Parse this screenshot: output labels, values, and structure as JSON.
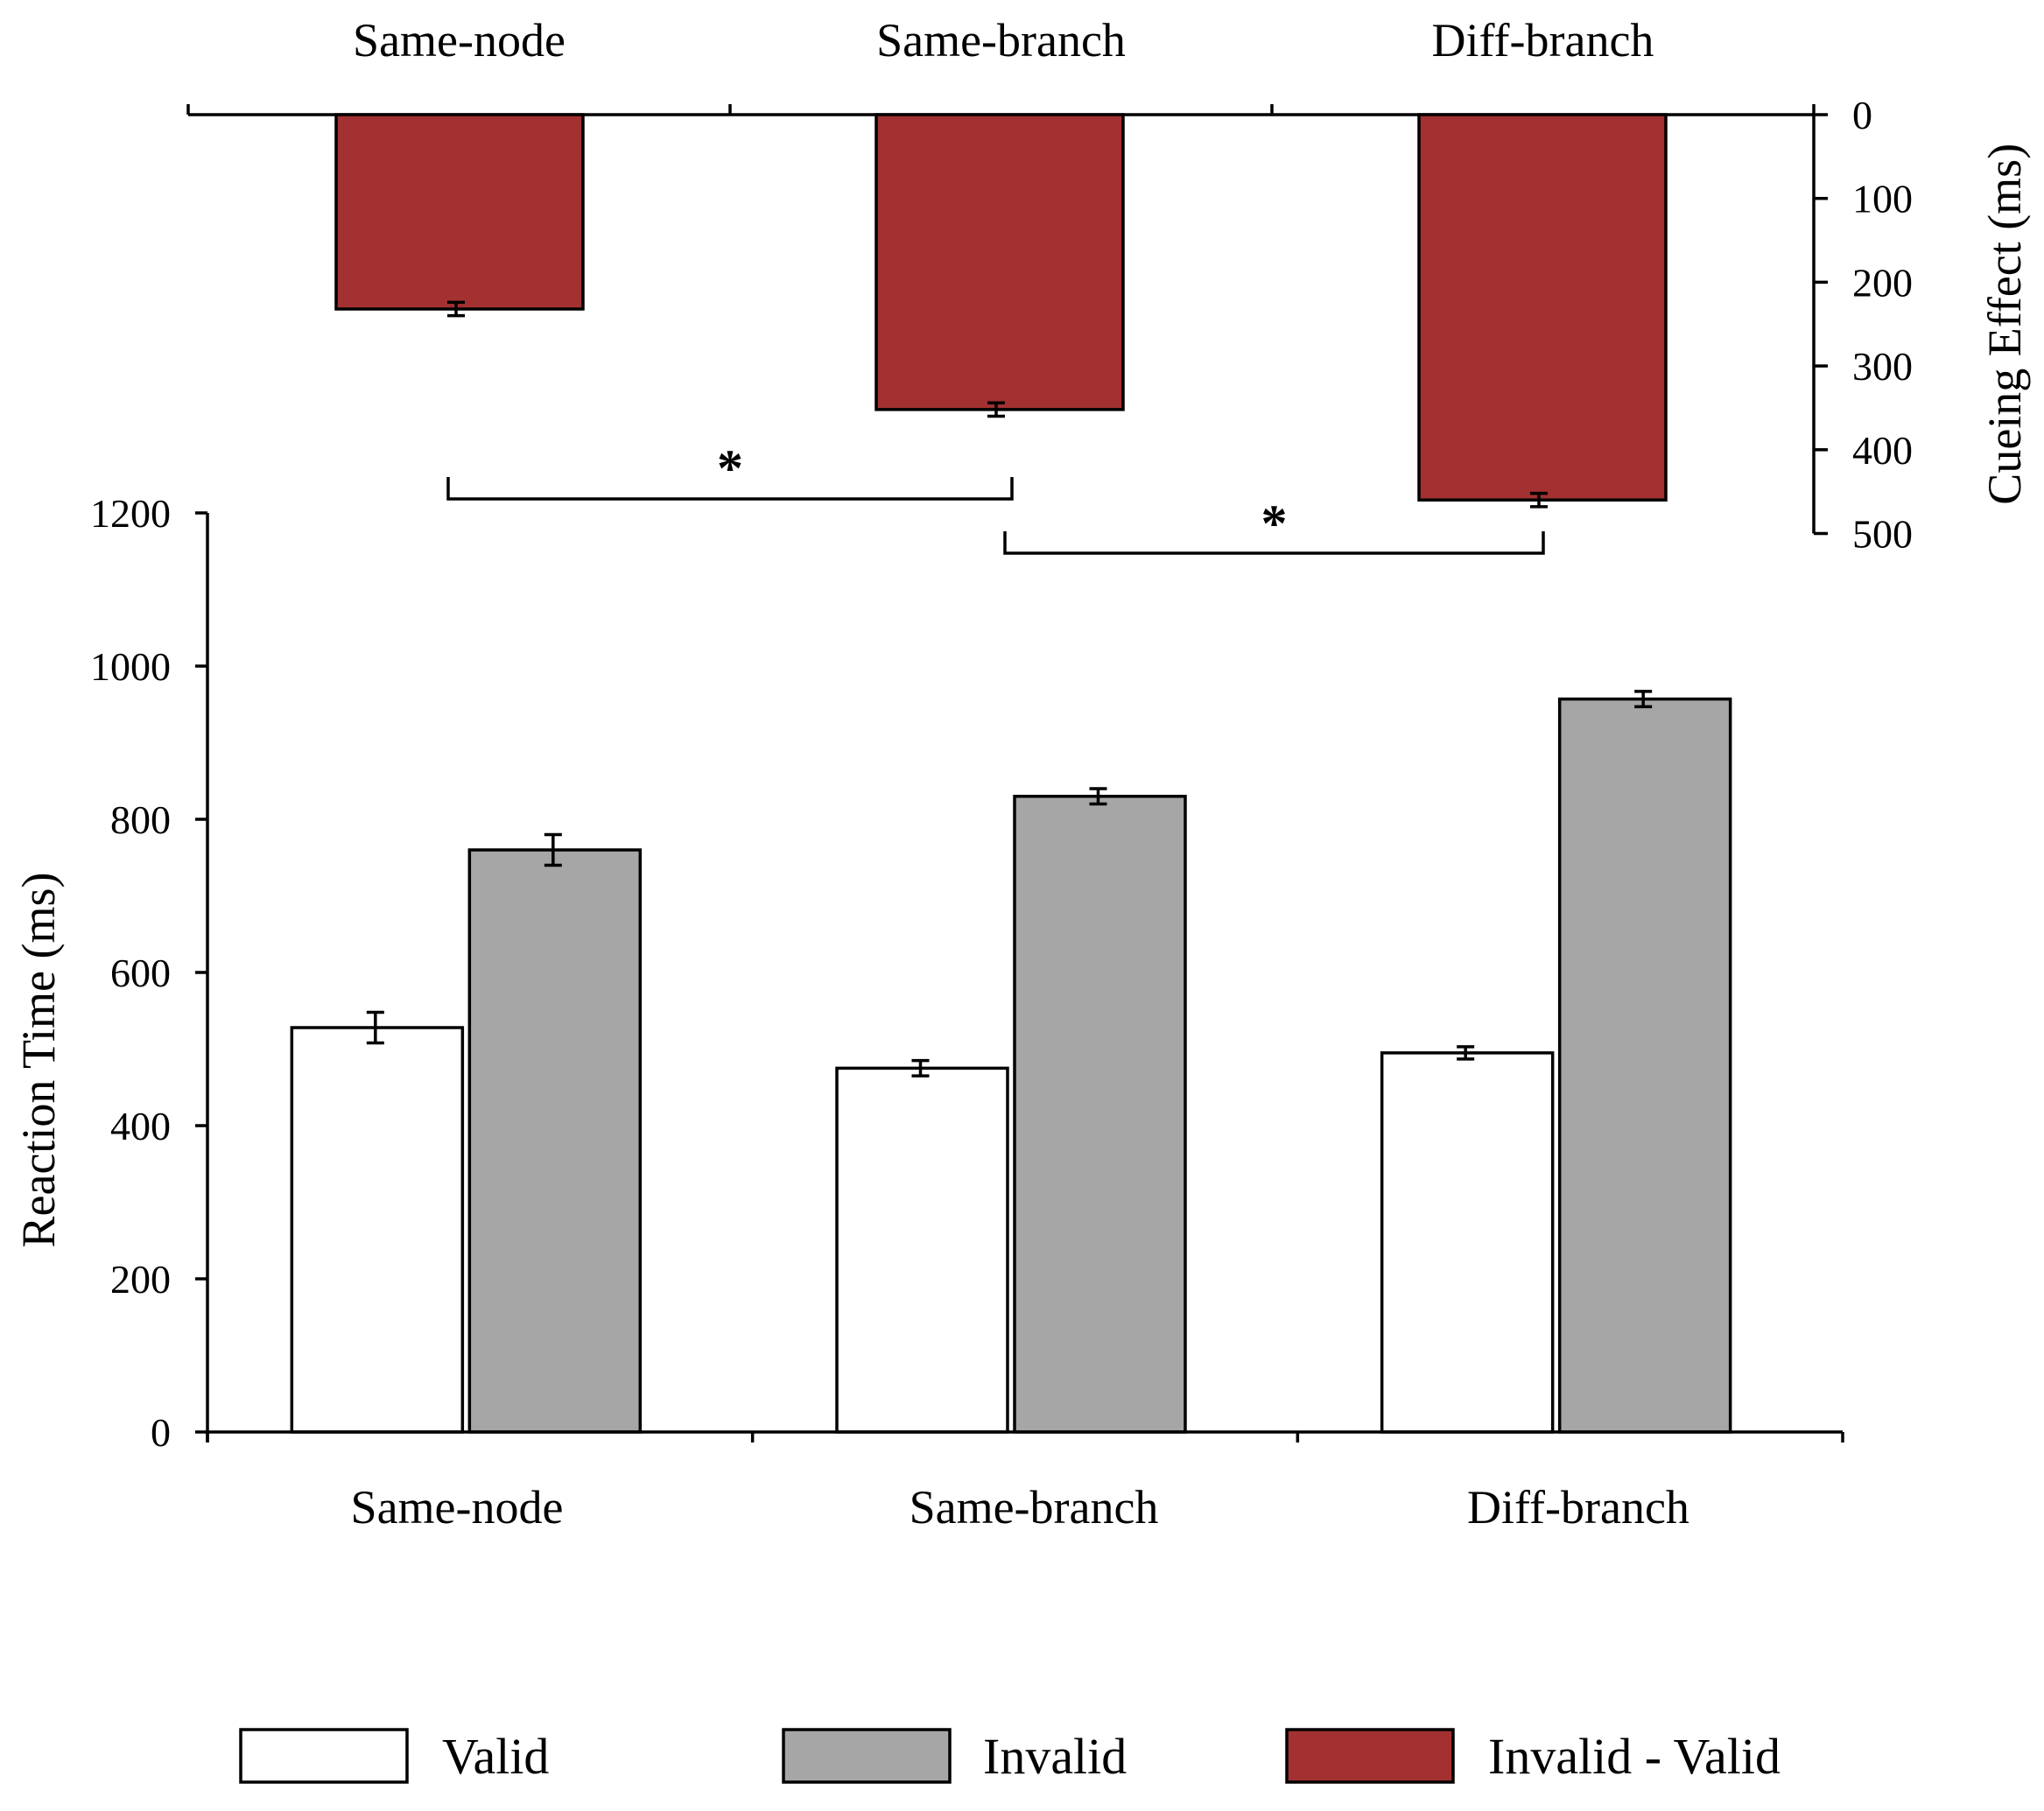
{
  "chart_data": [
    {
      "id": "cueing-effect",
      "type": "bar",
      "orientation": "inverted",
      "categories": [
        "Same-node",
        "Same-branch",
        "Diff-branch"
      ],
      "series": [
        {
          "name": "Invalid - Valid",
          "color": "#a33131",
          "values": [
            232,
            352,
            460
          ],
          "errors": [
            8,
            8,
            8
          ]
        }
      ],
      "ylabel": "Cueing Effect (ms)",
      "ylim": [
        0,
        500
      ],
      "yticks": [
        0,
        100,
        200,
        300,
        400,
        500
      ],
      "ytick_labels": [
        "0",
        "100",
        "200",
        "300",
        "400",
        "500"
      ],
      "axis_side": "right",
      "significance": [
        {
          "from": "Same-node",
          "to": "Same-branch",
          "label": "*"
        },
        {
          "from": "Same-branch",
          "to": "Diff-branch",
          "label": "*"
        }
      ]
    },
    {
      "id": "reaction-time",
      "type": "bar",
      "categories": [
        "Same-node",
        "Same-branch",
        "Diff-branch"
      ],
      "series": [
        {
          "name": "Valid",
          "color": "#ffffff",
          "values": [
            528,
            475,
            495
          ],
          "errors": [
            20,
            10,
            8
          ]
        },
        {
          "name": "Invalid",
          "color": "#a6a6a6",
          "values": [
            760,
            830,
            957
          ],
          "errors": [
            20,
            10,
            10
          ]
        }
      ],
      "ylabel": "Reaction Time (ms)",
      "ylim": [
        0,
        1200
      ],
      "yticks": [
        0,
        200,
        400,
        600,
        800,
        1000,
        1200
      ],
      "ytick_labels": [
        "0",
        "200",
        "400",
        "600",
        "800",
        "1000",
        "1200"
      ]
    }
  ],
  "legend": [
    {
      "label": "Valid",
      "color": "#ffffff"
    },
    {
      "label": "Invalid",
      "color": "#a6a6a6"
    },
    {
      "label": "Invalid - Valid",
      "color": "#a33131"
    }
  ]
}
